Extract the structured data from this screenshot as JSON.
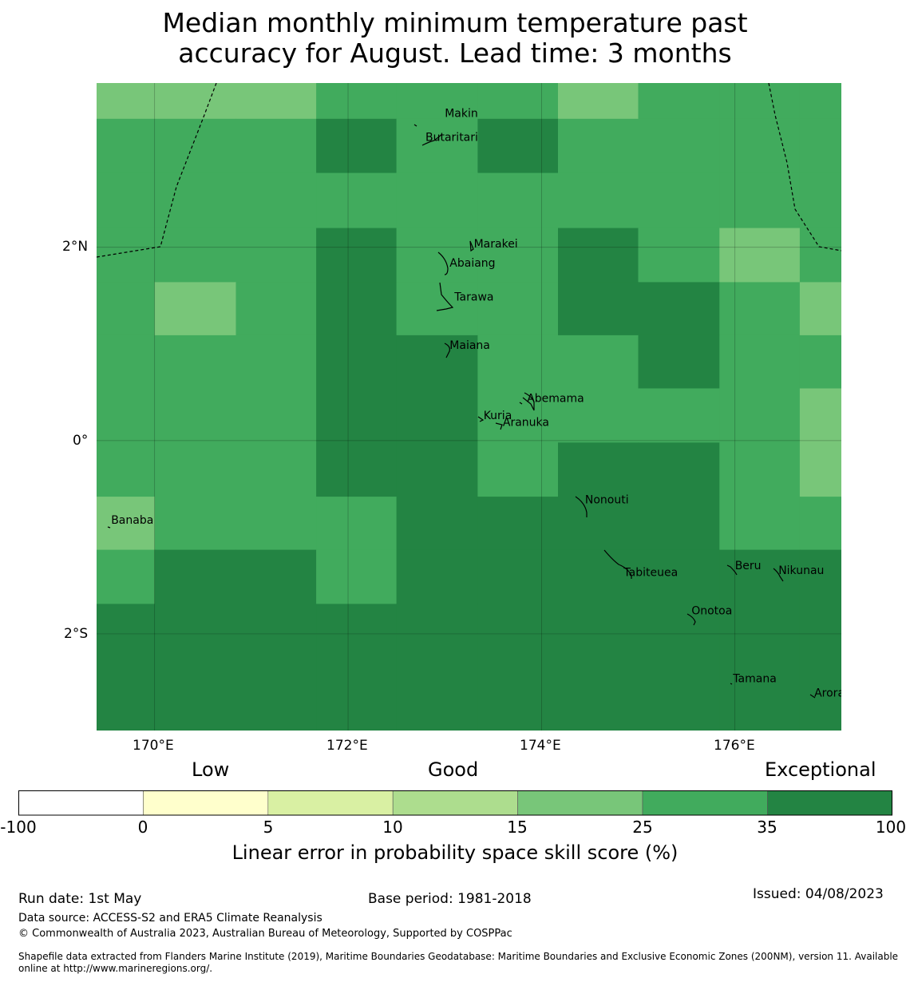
{
  "title_line1": "Median monthly minimum temperature past",
  "title_line2": "accuracy for August. Lead time: 3 months",
  "axes": {
    "lat_labels": [
      "2°N",
      "0°",
      "2°S"
    ],
    "lon_labels": [
      "170°E",
      "172°E",
      "174°E",
      "176°E"
    ]
  },
  "colors": {
    "c15_25": "#78c679",
    "c25_35": "#41ab5d",
    "c35_100": "#238443",
    "c10_15": "#addd8e",
    "c5_10": "#d9f0a3",
    "c0_5": "#ffffcc",
    "cneg": "#ffffff"
  },
  "grid_cells": {
    "lon_edges": [
      169.4,
      170.0,
      170.84,
      171.67,
      172.5,
      173.34,
      174.17,
      175.0,
      175.84,
      176.67,
      177.1
    ],
    "lat_edges": [
      3.7,
      3.33,
      2.77,
      2.2,
      1.64,
      1.09,
      0.54,
      -0.02,
      -0.58,
      -1.13,
      -1.69,
      -2.3,
      -3.0
    ],
    "rows": [
      [
        1,
        1,
        1,
        2,
        2,
        2,
        1,
        2,
        2,
        2
      ],
      [
        2,
        2,
        2,
        3,
        2,
        3,
        2,
        2,
        2,
        2
      ],
      [
        2,
        2,
        2,
        2,
        2,
        2,
        2,
        2,
        2,
        2
      ],
      [
        2,
        2,
        2,
        3,
        2,
        2,
        3,
        2,
        1,
        2
      ],
      [
        2,
        1,
        2,
        3,
        2,
        2,
        3,
        3,
        2,
        1
      ],
      [
        2,
        2,
        2,
        3,
        3,
        2,
        2,
        3,
        2,
        2
      ],
      [
        2,
        2,
        2,
        3,
        3,
        2,
        2,
        2,
        2,
        1
      ],
      [
        2,
        2,
        2,
        3,
        3,
        2,
        3,
        3,
        2,
        1
      ],
      [
        1,
        2,
        2,
        2,
        3,
        3,
        3,
        3,
        2,
        2
      ],
      [
        2,
        3,
        3,
        2,
        3,
        3,
        3,
        3,
        3,
        3
      ],
      [
        3,
        3,
        3,
        3,
        3,
        3,
        3,
        3,
        3,
        3
      ],
      [
        3,
        3,
        3,
        3,
        3,
        3,
        3,
        3,
        3,
        3
      ]
    ]
  },
  "islands": [
    {
      "name": "Makin",
      "lon": 173.0,
      "lat": 3.35
    },
    {
      "name": "Butaritari",
      "lon": 172.8,
      "lat": 3.1
    },
    {
      "name": "Marakei",
      "lon": 173.3,
      "lat": 2.0
    },
    {
      "name": "Abaiang",
      "lon": 173.05,
      "lat": 1.8
    },
    {
      "name": "Tarawa",
      "lon": 173.1,
      "lat": 1.45
    },
    {
      "name": "Maiana",
      "lon": 173.05,
      "lat": 0.95
    },
    {
      "name": "Abemama",
      "lon": 173.85,
      "lat": 0.4
    },
    {
      "name": "Kuria",
      "lon": 173.4,
      "lat": 0.22
    },
    {
      "name": "Aranuka",
      "lon": 173.6,
      "lat": 0.15
    },
    {
      "name": "Banaba",
      "lon": 169.55,
      "lat": -0.86
    },
    {
      "name": "Nonouti",
      "lon": 174.45,
      "lat": -0.65
    },
    {
      "name": "Tabiteuea",
      "lon": 174.85,
      "lat": -1.4
    },
    {
      "name": "Beru",
      "lon": 176.0,
      "lat": -1.33
    },
    {
      "name": "Nikunau",
      "lon": 176.45,
      "lat": -1.38
    },
    {
      "name": "Onotoa",
      "lon": 175.55,
      "lat": -1.8
    },
    {
      "name": "Tamana",
      "lon": 175.98,
      "lat": -2.5
    },
    {
      "name": "Arorae",
      "lon": 176.82,
      "lat": -2.65
    }
  ],
  "colorbar": {
    "words": [
      "Low",
      "Good",
      "Exceptional"
    ],
    "ticks": [
      "-100",
      "0",
      "5",
      "10",
      "15",
      "25",
      "35",
      "100"
    ],
    "label": "Linear error in probability space skill score (%)"
  },
  "footer": {
    "run_date": "Run date: 1st May",
    "base_period": "Base period: 1981-2018",
    "issued": "Issued: 04/08/2023",
    "data_source": "Data source: ACCESS-S2 and ERA5 Climate Reanalysis",
    "copyright": "© Commonwealth of Australia 2023, Australian Bureau of Meteorology, Supported by COSPPac",
    "shapefile_line1": "Shapefile data extracted from Flanders Marine Institute (2019), Maritime Boundaries Geodatabase: Maritime Boundaries and Exclusive Economic Zones (200NM), version 11. Available",
    "shapefile_line2": "online at http://www.marineregions.org/."
  }
}
